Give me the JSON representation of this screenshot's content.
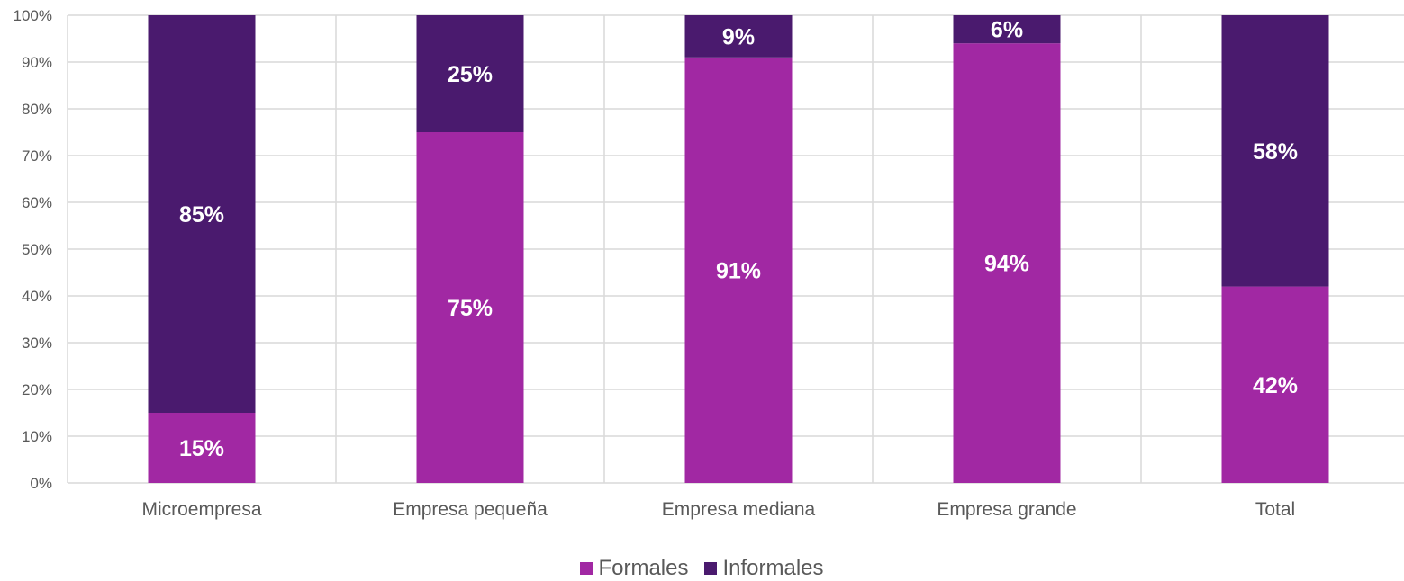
{
  "chart_data": {
    "type": "bar",
    "stacked": true,
    "percent": true,
    "categories": [
      "Microempresa",
      "Empresa pequeña",
      "Empresa mediana",
      "Empresa grande",
      "Total"
    ],
    "series": [
      {
        "name": "Formales",
        "values": [
          15,
          75,
          91,
          94,
          42
        ],
        "labels": [
          "15%",
          "75%",
          "91%",
          "94%",
          "42%"
        ],
        "color": "#a128a3"
      },
      {
        "name": "Informales",
        "values": [
          85,
          25,
          9,
          6,
          58
        ],
        "labels": [
          "85%",
          "25%",
          "9%",
          "6%",
          "58%"
        ],
        "color": "#4a1a6e"
      }
    ],
    "ylim": [
      0,
      100
    ],
    "yticks": [
      "0%",
      "10%",
      "20%",
      "30%",
      "40%",
      "50%",
      "60%",
      "70%",
      "80%",
      "90%",
      "100%"
    ],
    "grid": true,
    "legend_position": "bottom",
    "colors": {
      "grid": "#d9d9d9",
      "text": "#595959",
      "label": "#ffffff"
    }
  }
}
